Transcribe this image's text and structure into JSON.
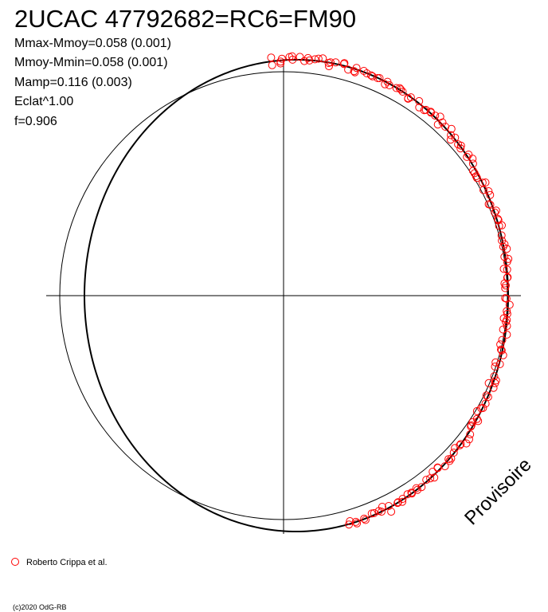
{
  "chart_data": {
    "type": "scatter",
    "title": "2UCAC 47792682=RC6=FM90",
    "stats": [
      "Mmax-Mmoy=0.058 (0.001)",
      "Mmoy-Mmin=0.058 (0.001)",
      "Mamp=0.116 (0.003)",
      "Eclat^1.00",
      "f=0.906"
    ],
    "watermark": "Provisoire",
    "legend": [
      {
        "label": "Roberto Crippa et al.",
        "color": "#ff0000",
        "marker": "open-circle"
      }
    ],
    "copyright": "(c)2020 OdG-RB",
    "plot": {
      "description": "polar phase diagram",
      "reference_circle": true,
      "axes_cross": true,
      "model_curve": true,
      "points_phase_range": [
        -0.21,
        0.27
      ],
      "n_points": 170
    },
    "colors": {
      "points": "#ff0000",
      "lines": "#000000",
      "background": "#ffffff"
    }
  }
}
